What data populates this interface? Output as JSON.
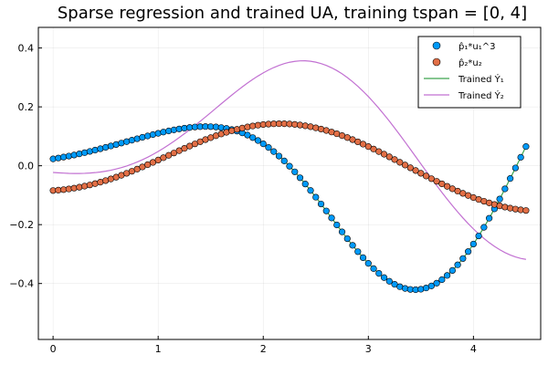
{
  "chart_data": {
    "type": "scatter",
    "title": "Sparse regression and trained UA, training tspan = [0, 4]",
    "xlim": [
      -0.14,
      4.64
    ],
    "ylim": [
      -0.59,
      0.47
    ],
    "x_ticks": [
      0,
      1,
      2,
      3,
      4
    ],
    "y_ticks": [
      -0.4,
      -0.2,
      0.0,
      0.2,
      0.4
    ],
    "x_tick_labels": [
      "0",
      "1",
      "2",
      "3",
      "4"
    ],
    "y_tick_labels": [
      "−0.4",
      "−0.2",
      "0.0",
      "0.2",
      "0.4"
    ],
    "grid": true,
    "legend_position": "top-right",
    "x_sample": {
      "start": 0.0,
      "step": 0.05,
      "count": 91
    },
    "series": [
      {
        "name": "p̂₁*u₁^3",
        "kind": "scatter",
        "color": "#009AFA",
        "values": [
          0.0233,
          0.0262,
          0.0294,
          0.0328,
          0.0364,
          0.0403,
          0.0444,
          0.0487,
          0.0531,
          0.0577,
          0.0624,
          0.0672,
          0.072,
          0.077,
          0.0819,
          0.0868,
          0.0917,
          0.0965,
          0.1012,
          0.1058,
          0.1102,
          0.1143,
          0.1182,
          0.1217,
          0.1249,
          0.1276,
          0.1299,
          0.1316,
          0.1327,
          0.1331,
          0.1328,
          0.1317,
          0.1297,
          0.1267,
          0.1228,
          0.1177,
          0.1116,
          0.1042,
          0.0956,
          0.0857,
          0.0745,
          0.062,
          0.0481,
          0.0328,
          0.0163,
          -0.0016,
          -0.0206,
          -0.0408,
          -0.062,
          -0.084,
          -0.1067,
          -0.1299,
          -0.1535,
          -0.1773,
          -0.201,
          -0.2246,
          -0.2477,
          -0.2702,
          -0.2918,
          -0.3123,
          -0.3316,
          -0.3494,
          -0.3656,
          -0.38,
          -0.3924,
          -0.4027,
          -0.4109,
          -0.4167,
          -0.4201,
          -0.421,
          -0.4194,
          -0.4151,
          -0.4083,
          -0.3989,
          -0.387,
          -0.3725,
          -0.3557,
          -0.3365,
          -0.3151,
          -0.2915,
          -0.2659,
          -0.2384,
          -0.2092,
          -0.1784,
          -0.1463,
          -0.1129,
          -0.0785,
          -0.0433,
          -0.0075,
          0.0287,
          0.0651
        ]
      },
      {
        "name": "p̂₂*u₂",
        "kind": "scatter",
        "color": "#E26F46",
        "values": [
          -0.0842,
          -0.0829,
          -0.0811,
          -0.0788,
          -0.0761,
          -0.0729,
          -0.0693,
          -0.0652,
          -0.0607,
          -0.0558,
          -0.0505,
          -0.0448,
          -0.0388,
          -0.0324,
          -0.0257,
          -0.0187,
          -0.0115,
          -0.0041,
          0.0036,
          0.0114,
          0.0193,
          0.0273,
          0.0353,
          0.0433,
          0.0513,
          0.0591,
          0.0668,
          0.0743,
          0.0816,
          0.0887,
          0.0954,
          0.1019,
          0.1079,
          0.1136,
          0.1188,
          0.1236,
          0.1279,
          0.1317,
          0.135,
          0.1377,
          0.1399,
          0.1414,
          0.1424,
          0.1428,
          0.1426,
          0.1418,
          0.1403,
          0.1383,
          0.1357,
          0.1326,
          0.1288,
          0.1246,
          0.1198,
          0.1145,
          0.1087,
          0.1024,
          0.0958,
          0.0887,
          0.0812,
          0.0734,
          0.0652,
          0.0568,
          0.0481,
          0.0392,
          0.0302,
          0.021,
          0.0117,
          0.0024,
          -0.007,
          -0.0163,
          -0.0256,
          -0.0348,
          -0.0439,
          -0.0528,
          -0.0615,
          -0.07,
          -0.0782,
          -0.0862,
          -0.0938,
          -0.1011,
          -0.108,
          -0.1145,
          -0.1206,
          -0.1263,
          -0.1315,
          -0.1362,
          -0.1404,
          -0.1441,
          -0.1473,
          -0.1499,
          -0.152
        ]
      },
      {
        "name": "Trained Ý₁",
        "kind": "line",
        "color": "#3DA44D",
        "values": [
          0.0233,
          0.0262,
          0.0294,
          0.0328,
          0.0364,
          0.0403,
          0.0444,
          0.0487,
          0.0531,
          0.0577,
          0.0624,
          0.0672,
          0.072,
          0.077,
          0.0819,
          0.0868,
          0.0917,
          0.0965,
          0.1012,
          0.1058,
          0.1102,
          0.1143,
          0.1182,
          0.1217,
          0.1249,
          0.1276,
          0.1299,
          0.1316,
          0.1327,
          0.1331,
          0.1328,
          0.1317,
          0.1297,
          0.1267,
          0.1228,
          0.1177,
          0.1116,
          0.1042,
          0.0956,
          0.0857,
          0.0745,
          0.062,
          0.0481,
          0.0328,
          0.0163,
          -0.0016,
          -0.0206,
          -0.0408,
          -0.062,
          -0.084,
          -0.1067,
          -0.1299,
          -0.1535,
          -0.1773,
          -0.201,
          -0.2246,
          -0.2477,
          -0.2702,
          -0.2918,
          -0.3123,
          -0.3316,
          -0.3494,
          -0.3656,
          -0.38,
          -0.3924,
          -0.4027,
          -0.4109,
          -0.4167,
          -0.4201,
          -0.421,
          -0.4194,
          -0.4151,
          -0.4083,
          -0.3989,
          -0.387,
          -0.3725,
          -0.3557,
          -0.3365,
          -0.3151,
          -0.2915,
          -0.2659,
          -0.2384,
          -0.2092,
          -0.1784,
          -0.1463,
          -0.1129,
          -0.0785,
          -0.0433,
          -0.0075,
          0.0287,
          0.0651
        ]
      },
      {
        "name": "Trained Ý₂",
        "kind": "line",
        "color": "#C271D2",
        "values": [
          -0.0227,
          -0.024,
          -0.025,
          -0.0258,
          -0.0262,
          -0.0262,
          -0.0257,
          -0.0248,
          -0.0233,
          -0.0212,
          -0.0185,
          -0.0152,
          -0.0111,
          -0.0063,
          -0.0008,
          0.0055,
          0.0126,
          0.0204,
          0.029,
          0.0384,
          0.0485,
          0.0593,
          0.0708,
          0.0829,
          0.0956,
          0.1088,
          0.1225,
          0.1366,
          0.151,
          0.1657,
          0.1805,
          0.1955,
          0.2104,
          0.2252,
          0.2398,
          0.254,
          0.2677,
          0.2808,
          0.2932,
          0.3048,
          0.3155,
          0.3251,
          0.3336,
          0.3409,
          0.3469,
          0.3515,
          0.3546,
          0.3563,
          0.3564,
          0.3549,
          0.3518,
          0.3471,
          0.3408,
          0.3328,
          0.3233,
          0.3122,
          0.2996,
          0.2854,
          0.2699,
          0.253,
          0.2349,
          0.2155,
          0.1951,
          0.1737,
          0.1514,
          0.1283,
          0.1046,
          0.0804,
          0.0558,
          0.0311,
          0.0063,
          -0.0184,
          -0.0428,
          -0.0669,
          -0.0905,
          -0.1134,
          -0.1356,
          -0.1569,
          -0.1772,
          -0.1965,
          -0.2146,
          -0.2315,
          -0.247,
          -0.2612,
          -0.2739,
          -0.2852,
          -0.2949,
          -0.3031,
          -0.3097,
          -0.3147,
          -0.3181
        ]
      }
    ]
  }
}
